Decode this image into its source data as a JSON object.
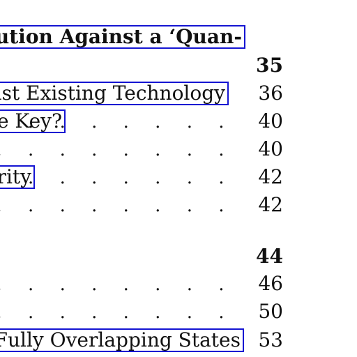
{
  "toc": {
    "entries": [
      {
        "title": "ution Against a ‘Quan-",
        "page": "",
        "bold": true,
        "linked": true
      },
      {
        "title": "",
        "page": "35",
        "bold": true,
        "linked": false
      },
      {
        "title": "ast Existing Technology",
        "page": "36",
        "bold": false,
        "linked": true
      },
      {
        "title": "e Key?",
        "page": "40",
        "bold": false,
        "linked": true,
        "leader": ". . . . . . . . ."
      },
      {
        "title": "",
        "page": "40",
        "bold": false,
        "linked": false,
        "leader": ". . . . . . . . . . . . . . ."
      },
      {
        "title": "rity",
        "page": "42",
        "bold": false,
        "linked": true,
        "leader": ". . . . . . . . . . . . ."
      },
      {
        "title": "",
        "page": "42",
        "bold": false,
        "linked": false,
        "leader": ". . . . . . . . . . . . . . ."
      },
      {
        "title": "",
        "page": "44",
        "bold": true,
        "linked": false
      },
      {
        "title": "",
        "page": "46",
        "bold": false,
        "linked": false,
        "leader": ". . . . . . . . . . . . . . ."
      },
      {
        "title": "",
        "page": "50",
        "bold": false,
        "linked": false,
        "leader": ". . . . . . . . . . . . . . ."
      },
      {
        "title": "Fully Overlapping States",
        "page": "53",
        "bold": false,
        "linked": true
      }
    ]
  }
}
